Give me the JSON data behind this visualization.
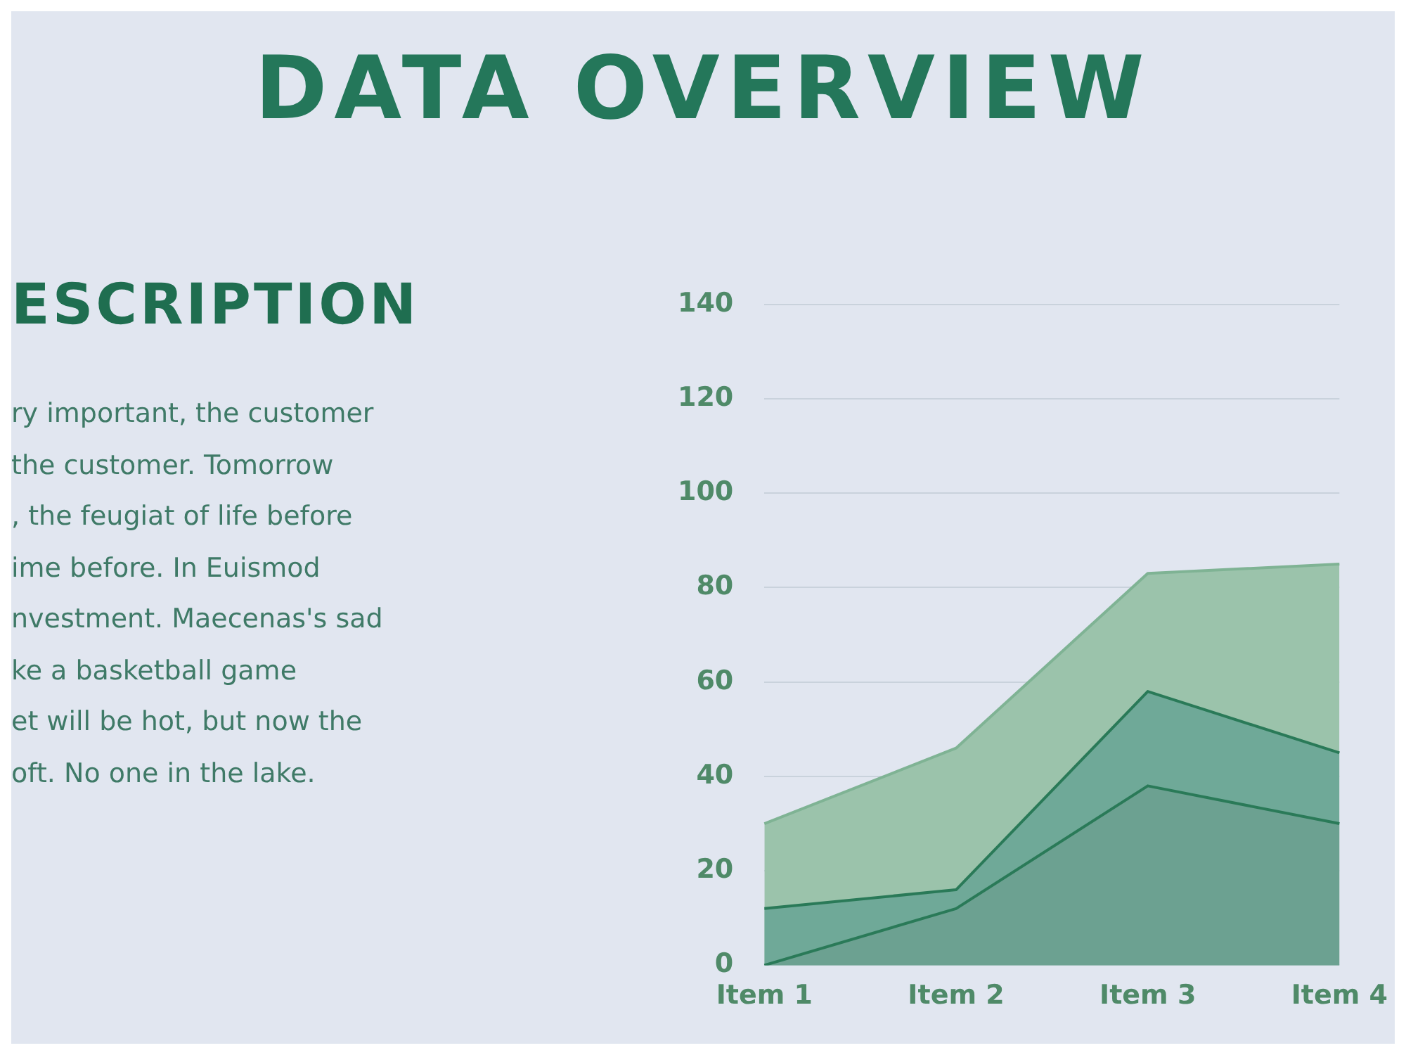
{
  "chart_data": {
    "type": "area",
    "title": "DATA OVERVIEW",
    "annotations": [
      "ESCRIPTION",
      "ry important, the customer",
      "the customer. Tomorrow",
      ", the feugiat of life before",
      "ime before. In Euismod",
      "nvestment. Maecenas's sad",
      "ke a basketball game",
      "et will be hot, but now the",
      "oft. No one in the lake."
    ],
    "categories": [
      "Item 1",
      "Item 2",
      "Item 3",
      "Item 4"
    ],
    "series": [
      {
        "color": "#6ca191",
        "values": [
          0,
          12,
          38,
          30
        ]
      },
      {
        "color": "#6fa998",
        "values": [
          12,
          16,
          58,
          45
        ]
      },
      {
        "color": "#9bc3ab",
        "values": [
          30,
          46,
          83,
          85
        ]
      }
    ],
    "ylim": [
      0,
      140
    ],
    "yticks": [
      0,
      20,
      40,
      60,
      80,
      100,
      120,
      140
    ],
    "grid": "y",
    "legend": false
  }
}
